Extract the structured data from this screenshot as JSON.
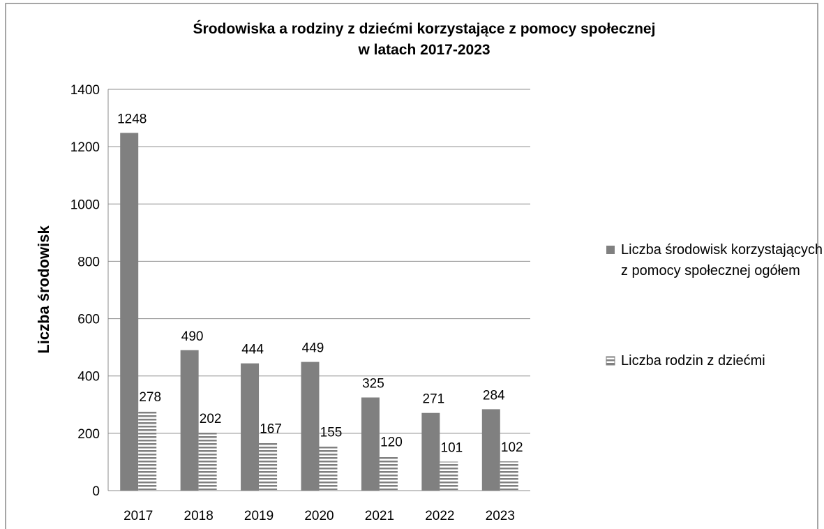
{
  "chart_data": {
    "type": "bar",
    "title": [
      "Środowiska a rodziny z dziećmi korzystające z pomocy społecznej",
      "w latach 2017-2023"
    ],
    "y_label": "Liczba środowisk",
    "categories": [
      "2017",
      "2018",
      "2019",
      "2020",
      "2021",
      "2022",
      "2023"
    ],
    "series": [
      {
        "name": "Liczba środowisk korzystających z pomocy społecznej ogółem",
        "color": "#808080",
        "values": [
          1248,
          490,
          444,
          449,
          325,
          271,
          284
        ]
      },
      {
        "name": "Liczba rodzin z dziećmi",
        "color": "#808080",
        "hatch": "horizontal",
        "values": [
          278,
          202,
          167,
          155,
          120,
          101,
          102
        ]
      }
    ],
    "ylim": [
      0,
      1400
    ],
    "yticks": [
      0,
      200,
      400,
      600,
      800,
      1000,
      1200,
      1400
    ],
    "grid": true,
    "legend": "right"
  }
}
